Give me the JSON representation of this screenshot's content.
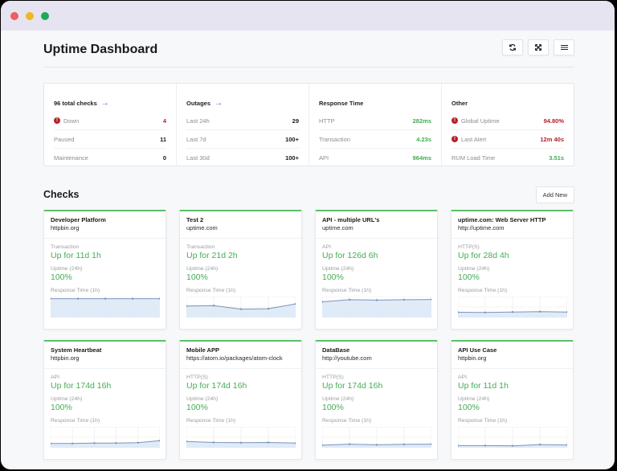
{
  "window": {
    "traffic_lights": [
      {
        "name": "close",
        "color": "#ec5f5f"
      },
      {
        "name": "minimize",
        "color": "#f0b723"
      },
      {
        "name": "maximize",
        "color": "#1faa5a"
      }
    ]
  },
  "header": {
    "title": "Uptime Dashboard",
    "toolbar": [
      {
        "name": "refresh-button",
        "icon": "refresh-icon",
        "glyph": "↻"
      },
      {
        "name": "fullscreen-button",
        "icon": "expand-icon",
        "glyph": "✕"
      },
      {
        "name": "menu-button",
        "icon": "menu-icon",
        "glyph": "≡"
      }
    ]
  },
  "summary": {
    "columns": [
      {
        "title": "96 total checks",
        "has_arrow": true,
        "rows": [
          {
            "label": "Down",
            "value": "4",
            "alert": true,
            "color": "red"
          },
          {
            "label": "Paused",
            "value": "11",
            "alert": false,
            "color": ""
          },
          {
            "label": "Maintenance",
            "value": "0",
            "alert": false,
            "color": ""
          }
        ]
      },
      {
        "title": "Outages",
        "has_arrow": true,
        "rows": [
          {
            "label": "Last 24h",
            "value": "29",
            "alert": false,
            "color": ""
          },
          {
            "label": "Last 7d",
            "value": "100+",
            "alert": false,
            "color": ""
          },
          {
            "label": "Last 30d",
            "value": "100+",
            "alert": false,
            "color": ""
          }
        ]
      },
      {
        "title": "Response Time",
        "has_arrow": false,
        "rows": [
          {
            "label": "HTTP",
            "value": "282ms",
            "alert": false,
            "color": "green"
          },
          {
            "label": "Transaction",
            "value": "4.23s",
            "alert": false,
            "color": "green"
          },
          {
            "label": "API",
            "value": "964ms",
            "alert": false,
            "color": "green"
          }
        ]
      },
      {
        "title": "Other",
        "has_arrow": false,
        "rows": [
          {
            "label": "Global Uptime",
            "value": "94.80%",
            "alert": true,
            "color": "red"
          },
          {
            "label": "Last Alert",
            "value": "12m 40s",
            "alert": true,
            "color": "red"
          },
          {
            "label": "RUM Load Time",
            "value": "3.51s",
            "alert": false,
            "color": "green"
          }
        ]
      }
    ]
  },
  "checks": {
    "title": "Checks",
    "add_label": "Add New",
    "uptime_label": "Uptime (24h)",
    "response_label": "Response Time (1h)",
    "items": [
      {
        "name": "Developer Platform",
        "url": "httpbin.org",
        "type": "Transaction",
        "status": "Up for 11d 1h",
        "uptime": "100%",
        "points": [
          0.9,
          0.9,
          0.9,
          0.9,
          0.9
        ]
      },
      {
        "name": "Test 2",
        "url": "uptime.com",
        "type": "Transaction",
        "status": "Up for 21d 2h",
        "uptime": "100%",
        "points": [
          0.55,
          0.57,
          0.4,
          0.42,
          0.65
        ]
      },
      {
        "name": "API - multiple URL's",
        "url": "uptime.com",
        "type": "API",
        "status": "Up for 126d 6h",
        "uptime": "100%",
        "points": [
          0.75,
          0.85,
          0.83,
          0.85,
          0.86
        ]
      },
      {
        "name": "uptime.com: Web Server HTTP",
        "url": "http://uptime.com",
        "type": "HTTP(S)",
        "status": "Up for 28d 4h",
        "uptime": "100%",
        "points": [
          0.25,
          0.24,
          0.26,
          0.28,
          0.26
        ]
      },
      {
        "name": "System Heartbeat",
        "url": "httpbin.org",
        "type": "API",
        "status": "Up for 174d 16h",
        "uptime": "100%",
        "points": [
          0.2,
          0.2,
          0.22,
          0.22,
          0.24,
          0.34
        ]
      },
      {
        "name": "Mobile APP",
        "url": "https://atom.io/packages/atom-clock",
        "type": "HTTP(S)",
        "status": "Up for 174d 16h",
        "uptime": "100%",
        "points": [
          0.3,
          0.25,
          0.24,
          0.25,
          0.22
        ]
      },
      {
        "name": "DataBase",
        "url": "http://youtube.com",
        "type": "HTTP(S)",
        "status": "Up for 174d 16h",
        "uptime": "100%",
        "points": [
          0.12,
          0.17,
          0.14,
          0.16,
          0.17
        ]
      },
      {
        "name": "API Use Case",
        "url": "httpbin.org",
        "type": "API",
        "status": "Up for 11d 1h",
        "uptime": "100%",
        "points": [
          0.1,
          0.1,
          0.09,
          0.15,
          0.13
        ]
      }
    ]
  },
  "colors": {
    "accent_green": "#46ad55",
    "alert_red": "#b4212a",
    "card_top_border": "#5cc06a",
    "chart_line": "#7a93bb",
    "chart_fill": "#dde9f7",
    "arrow_blue": "#2f6fc0"
  }
}
